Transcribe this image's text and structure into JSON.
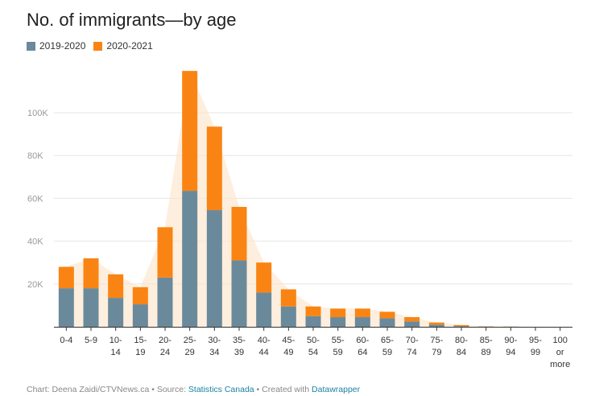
{
  "title": "No. of immigrants—by age",
  "legend": [
    {
      "label": "2019-2020",
      "color": "#6a8a9c"
    },
    {
      "label": "2020-2021",
      "color": "#fa8413"
    }
  ],
  "footer": {
    "prefix": "Chart: Deena Zaidi/CTVNews.ca • Source: ",
    "source": "Statistics Canada",
    "mid": " • Created with ",
    "tool": "Datawrapper"
  },
  "chart_data": {
    "type": "bar",
    "stacked": true,
    "categories": [
      [
        "0-4"
      ],
      [
        "5-9"
      ],
      [
        "10-",
        "14"
      ],
      [
        "15-",
        "19"
      ],
      [
        "20-",
        "24"
      ],
      [
        "25-",
        "29"
      ],
      [
        "30-",
        "34"
      ],
      [
        "35-",
        "39"
      ],
      [
        "40-",
        "44"
      ],
      [
        "45-",
        "49"
      ],
      [
        "50-",
        "54"
      ],
      [
        "55-",
        "59"
      ],
      [
        "60-",
        "64"
      ],
      [
        "65-",
        "59"
      ],
      [
        "70-",
        "74"
      ],
      [
        "75-",
        "79"
      ],
      [
        "80-",
        "84"
      ],
      [
        "85-",
        "89"
      ],
      [
        "90-",
        "94"
      ],
      [
        "95-",
        "99"
      ],
      [
        "100",
        "or",
        "more"
      ]
    ],
    "series": [
      {
        "name": "2019-2020",
        "color": "#6a8a9c",
        "values": [
          18000,
          18000,
          13500,
          10500,
          23000,
          63500,
          54500,
          31000,
          16000,
          9500,
          5000,
          4500,
          4500,
          4000,
          2500,
          1000,
          300,
          100,
          50,
          0,
          0
        ]
      },
      {
        "name": "2020-2021",
        "color": "#fa8413",
        "values": [
          10000,
          14000,
          11000,
          8000,
          23500,
          56000,
          39000,
          25000,
          14000,
          8000,
          4500,
          4000,
          4000,
          3000,
          2000,
          1000,
          500,
          100,
          50,
          0,
          0
        ]
      }
    ],
    "yticks": [
      20000,
      40000,
      60000,
      80000,
      100000
    ],
    "ytick_labels": [
      "20K",
      "40K",
      "60K",
      "80K",
      "100K"
    ],
    "ylim": [
      0,
      120000
    ],
    "grid": true,
    "xlabel": "",
    "ylabel": ""
  }
}
